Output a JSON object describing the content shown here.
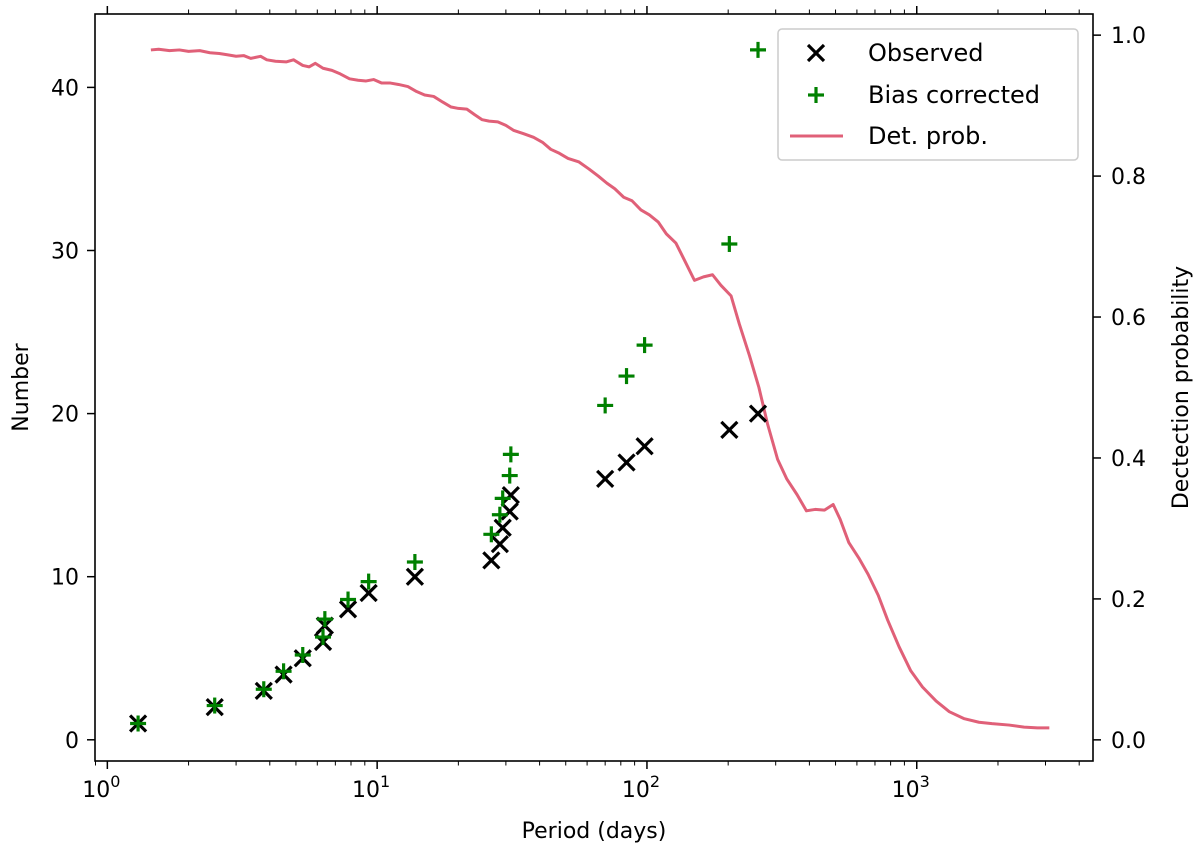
{
  "chart_data": {
    "type": "scatter",
    "xscale": "log",
    "xlabel": "Period (days)",
    "ylabel": "Number",
    "y2label": "Dectection probability",
    "xlim": [
      0.9,
      4500
    ],
    "ylim": [
      -1.3,
      44.5
    ],
    "y2lim": [
      -0.03,
      1.03
    ],
    "xticks": [
      {
        "value": 1,
        "base": "10",
        "exp": "0"
      },
      {
        "value": 10,
        "base": "10",
        "exp": "1"
      },
      {
        "value": 100,
        "base": "10",
        "exp": "2"
      },
      {
        "value": 1000,
        "base": "10",
        "exp": "3"
      }
    ],
    "yticks": [
      0,
      10,
      20,
      30,
      40
    ],
    "y2ticks": [
      "0.0",
      "0.2",
      "0.4",
      "0.6",
      "0.8",
      "1.0"
    ],
    "legend_position": "top-right",
    "colors": {
      "observed": "#000000",
      "bias": "#008000",
      "prob": "#e06078"
    },
    "series": [
      {
        "name": "Observed",
        "marker": "x",
        "points": [
          [
            1.3,
            1
          ],
          [
            2.5,
            2
          ],
          [
            3.8,
            3
          ],
          [
            4.5,
            4
          ],
          [
            5.3,
            5
          ],
          [
            6.3,
            6
          ],
          [
            6.4,
            7
          ],
          [
            7.8,
            8
          ],
          [
            9.3,
            9
          ],
          [
            13.8,
            10
          ],
          [
            26.5,
            11
          ],
          [
            28.5,
            12
          ],
          [
            29.2,
            13
          ],
          [
            31.0,
            14
          ],
          [
            31.3,
            15
          ],
          [
            70,
            16
          ],
          [
            84,
            17
          ],
          [
            98,
            18
          ],
          [
            202,
            19
          ],
          [
            258,
            20
          ]
        ]
      },
      {
        "name": "Bias corrected",
        "marker": "+",
        "points": [
          [
            1.3,
            1.0
          ],
          [
            2.5,
            2.1
          ],
          [
            3.8,
            3.1
          ],
          [
            4.5,
            4.2
          ],
          [
            5.3,
            5.2
          ],
          [
            6.3,
            6.3
          ],
          [
            6.4,
            7.4
          ],
          [
            7.8,
            8.6
          ],
          [
            9.3,
            9.7
          ],
          [
            13.8,
            10.9
          ],
          [
            26.5,
            12.6
          ],
          [
            28.5,
            13.8
          ],
          [
            29.2,
            14.8
          ],
          [
            31.0,
            16.2
          ],
          [
            31.3,
            17.5
          ],
          [
            70,
            20.5
          ],
          [
            84,
            22.3
          ],
          [
            98,
            24.2
          ],
          [
            202,
            30.4
          ],
          [
            258,
            42.3
          ]
        ]
      },
      {
        "name": "Det. prob.",
        "marker": "line",
        "axis": "right",
        "points": [
          [
            1.45,
            0.979
          ],
          [
            1.55,
            0.98
          ],
          [
            1.7,
            0.978
          ],
          [
            1.85,
            0.979
          ],
          [
            2.0,
            0.977
          ],
          [
            2.2,
            0.978
          ],
          [
            2.4,
            0.975
          ],
          [
            2.6,
            0.974
          ],
          [
            2.8,
            0.972
          ],
          [
            3.0,
            0.97
          ],
          [
            3.2,
            0.971
          ],
          [
            3.4,
            0.967
          ],
          [
            3.7,
            0.97
          ],
          [
            3.9,
            0.965
          ],
          [
            4.2,
            0.963
          ],
          [
            4.6,
            0.962
          ],
          [
            4.9,
            0.965
          ],
          [
            5.3,
            0.957
          ],
          [
            5.6,
            0.955
          ],
          [
            5.9,
            0.96
          ],
          [
            6.3,
            0.953
          ],
          [
            6.8,
            0.95
          ],
          [
            7.3,
            0.945
          ],
          [
            7.9,
            0.938
          ],
          [
            8.5,
            0.936
          ],
          [
            9.1,
            0.935
          ],
          [
            9.7,
            0.937
          ],
          [
            10.4,
            0.932
          ],
          [
            11.2,
            0.932
          ],
          [
            12.0,
            0.93
          ],
          [
            13.0,
            0.927
          ],
          [
            14.0,
            0.92
          ],
          [
            15.0,
            0.915
          ],
          [
            16.2,
            0.913
          ],
          [
            17.5,
            0.905
          ],
          [
            18.8,
            0.898
          ],
          [
            20.0,
            0.896
          ],
          [
            21.5,
            0.895
          ],
          [
            23.0,
            0.887
          ],
          [
            24.5,
            0.88
          ],
          [
            26,
            0.878
          ],
          [
            28,
            0.877
          ],
          [
            30,
            0.872
          ],
          [
            32,
            0.865
          ],
          [
            35,
            0.86
          ],
          [
            38,
            0.855
          ],
          [
            41,
            0.848
          ],
          [
            44,
            0.838
          ],
          [
            47,
            0.833
          ],
          [
            51,
            0.825
          ],
          [
            56,
            0.82
          ],
          [
            61,
            0.81
          ],
          [
            66,
            0.8
          ],
          [
            71,
            0.79
          ],
          [
            76,
            0.782
          ],
          [
            82,
            0.77
          ],
          [
            88,
            0.765
          ],
          [
            95,
            0.752
          ],
          [
            102,
            0.745
          ],
          [
            110,
            0.735
          ],
          [
            118,
            0.718
          ],
          [
            128,
            0.705
          ],
          [
            138,
            0.68
          ],
          [
            150,
            0.652
          ],
          [
            162,
            0.657
          ],
          [
            175,
            0.66
          ],
          [
            188,
            0.645
          ],
          [
            205,
            0.63
          ],
          [
            220,
            0.59
          ],
          [
            240,
            0.545
          ],
          [
            260,
            0.5
          ],
          [
            280,
            0.448
          ],
          [
            305,
            0.398
          ],
          [
            330,
            0.37
          ],
          [
            360,
            0.348
          ],
          [
            390,
            0.325
          ],
          [
            420,
            0.327
          ],
          [
            455,
            0.326
          ],
          [
            490,
            0.334
          ],
          [
            520,
            0.313
          ],
          [
            560,
            0.28
          ],
          [
            610,
            0.258
          ],
          [
            660,
            0.235
          ],
          [
            720,
            0.205
          ],
          [
            780,
            0.17
          ],
          [
            860,
            0.132
          ],
          [
            950,
            0.098
          ],
          [
            1050,
            0.075
          ],
          [
            1180,
            0.055
          ],
          [
            1320,
            0.04
          ],
          [
            1500,
            0.03
          ],
          [
            1700,
            0.025
          ],
          [
            1900,
            0.023
          ],
          [
            2200,
            0.021
          ],
          [
            2500,
            0.018
          ],
          [
            2800,
            0.017
          ],
          [
            3100,
            0.017
          ]
        ]
      }
    ]
  }
}
